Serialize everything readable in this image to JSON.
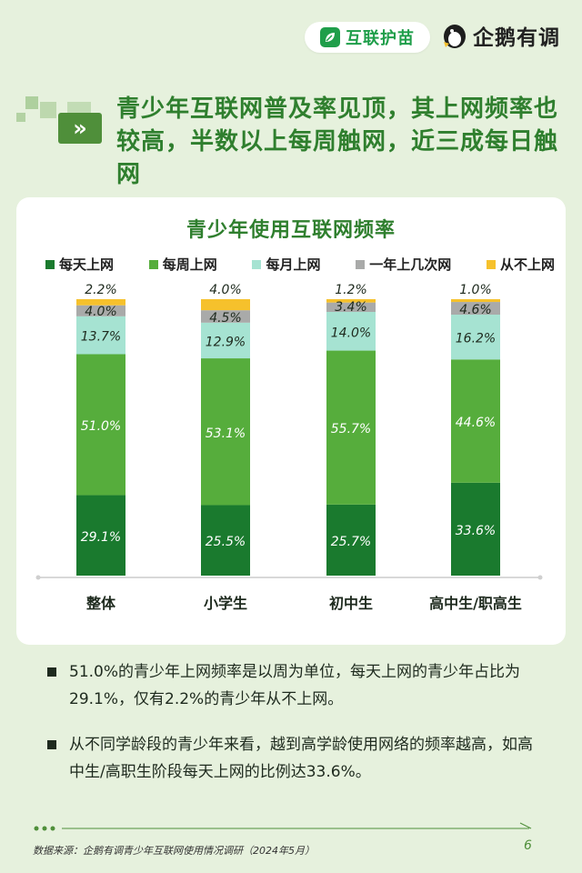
{
  "header": {
    "brand_badge": "互联护苗",
    "brand_logo": "企鹅有调",
    "title": "青少年互联网普及率见顶，其上网频率也较高，半数以上每周触网，近三成每日触网",
    "title_icon": "»"
  },
  "chart_data": {
    "type": "bar",
    "stacked": true,
    "orientation": "vertical",
    "title": "青少年使用互联网频率",
    "categories": [
      "整体",
      "小学生",
      "初中生",
      "高中生/职高生"
    ],
    "series": [
      {
        "name": "每天上网",
        "color": "#1a7a2e",
        "values": [
          29.1,
          25.5,
          25.7,
          33.6
        ],
        "labels": [
          "29.1%",
          "25.5%",
          "25.7%",
          "33.6%"
        ]
      },
      {
        "name": "每周上网",
        "color": "#56ad3c",
        "values": [
          51.0,
          53.1,
          55.7,
          44.6
        ],
        "labels": [
          "51.0%",
          "53.1%",
          "55.7%",
          "44.6%"
        ]
      },
      {
        "name": "每月上网",
        "color": "#a6e3d2",
        "values": [
          13.7,
          12.9,
          14.0,
          16.2
        ],
        "labels": [
          "13.7%",
          "12.9%",
          "14.0%",
          "16.2%"
        ]
      },
      {
        "name": "一年上几次网",
        "color": "#a9aaa9",
        "values": [
          4.0,
          4.5,
          3.4,
          4.6
        ],
        "labels": [
          "4.0%",
          "4.5%",
          "3.4%",
          "4.6%"
        ]
      },
      {
        "name": "从不上网",
        "color": "#f6c12c",
        "values": [
          2.2,
          4.0,
          1.2,
          1.0
        ],
        "labels": [
          "2.2%",
          "4.0%",
          "1.2%",
          "1.0%"
        ]
      }
    ],
    "ylim": [
      0,
      100
    ],
    "grid": false,
    "legend_position": "top"
  },
  "notes": [
    "51.0%的青少年上网频率是以周为单位，每天上网的青少年占比为29.1%，仅有2.2%的青少年从不上网。",
    "从不同学龄段的青少年来看，越到高学龄使用网络的频率越高，如高中生/高职生阶段每天上网的比例达33.6%。"
  ],
  "footer": {
    "source": "数据来源：企鹅有调青少年互联网使用情况调研（2024年5月）",
    "page_number": "6"
  }
}
